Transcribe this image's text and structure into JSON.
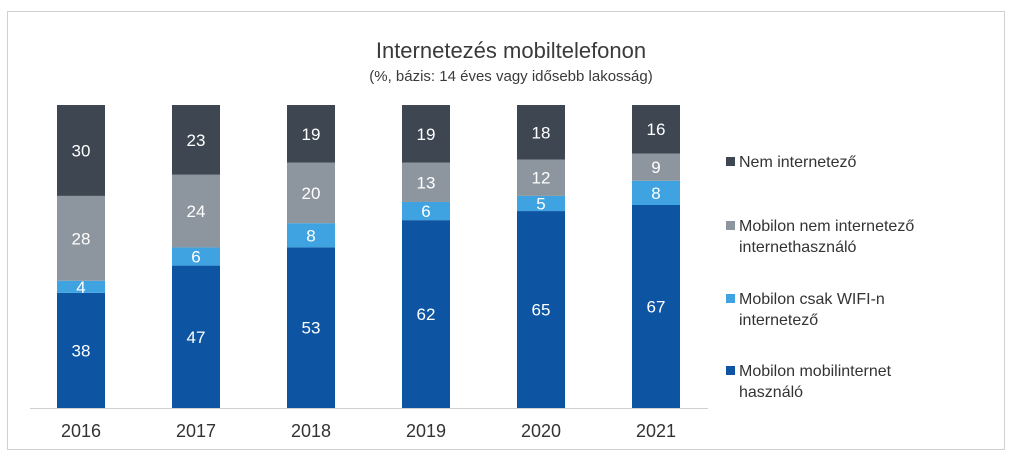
{
  "chart_data": {
    "type": "bar",
    "stacked": true,
    "title": "Internetezés mobiltelefonon",
    "subtitle": "(%, bázis: 14 éves vagy idősebb lakosság)",
    "categories": [
      "2016",
      "2017",
      "2018",
      "2019",
      "2020",
      "2021"
    ],
    "series": [
      {
        "name": "Mobilon mobilinternet használó",
        "legend_lines": [
          "Mobilon mobilinternet",
          "használó"
        ],
        "values": [
          38,
          47,
          53,
          62,
          65,
          67
        ],
        "color": "#0d55a3",
        "label_color": "#ffffff"
      },
      {
        "name": "Mobilon csak WIFI-n internetező",
        "legend_lines": [
          "Mobilon csak WIFI-n",
          "internetező"
        ],
        "values": [
          4,
          6,
          8,
          6,
          5,
          8
        ],
        "color": "#3ea3e0",
        "label_color": "#ffffff"
      },
      {
        "name": "Mobilon nem internetező internethasználó",
        "legend_lines": [
          "Mobilon nem internetező",
          "internethasználó"
        ],
        "values": [
          28,
          24,
          20,
          13,
          12,
          9
        ],
        "color": "#8d959e",
        "label_color": "#ffffff"
      },
      {
        "name": "Nem internetező",
        "legend_lines": [
          "Nem internetező"
        ],
        "values": [
          30,
          23,
          19,
          19,
          18,
          16
        ],
        "color": "#3d4651",
        "label_color": "#ffffff"
      }
    ],
    "ylim": [
      0,
      100
    ],
    "legend_position": "right",
    "grid": false
  }
}
